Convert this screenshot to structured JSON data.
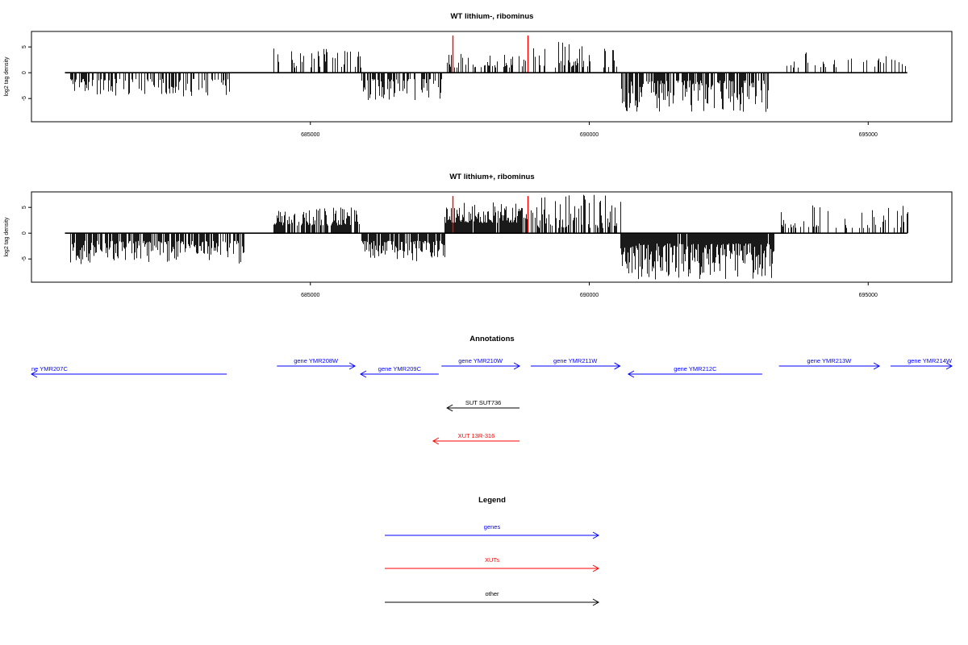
{
  "chart_data": [
    {
      "type": "bar",
      "title": "WT lithium-, ribominus",
      "ylabel": "log2 tag density",
      "xlabel": "",
      "xlim": [
        680000,
        696500
      ],
      "ylim": [
        -9.5,
        8
      ],
      "x_ticks": [
        685000,
        690000,
        695000
      ],
      "x_tick_labels": [
        "685000",
        "690000",
        "695000"
      ],
      "y_ticks": [
        -5,
        0,
        5
      ],
      "y_tick_labels": [
        "-5",
        "0",
        "5"
      ],
      "baseline": {
        "from": 680600,
        "to": 695700,
        "value": 0
      },
      "highlight_color": "#ff0000",
      "highlights": [
        {
          "x": 687550,
          "value": 7.2
        },
        {
          "x": 688900,
          "value": 7.2
        }
      ],
      "segments": [
        {
          "from": 680700,
          "to": 683550,
          "sign": -1,
          "density": 0.45,
          "min": 1.2,
          "max": 4.6
        },
        {
          "from": 684300,
          "to": 685900,
          "sign": 1,
          "density": 0.35,
          "min": 1.0,
          "max": 4.8
        },
        {
          "from": 685900,
          "to": 687350,
          "sign": -1,
          "density": 0.55,
          "min": 1.2,
          "max": 5.5
        },
        {
          "from": 687400,
          "to": 688850,
          "sign": 1,
          "density": 0.35,
          "min": 1.0,
          "max": 3.8
        },
        {
          "from": 688950,
          "to": 690550,
          "sign": 1,
          "density": 0.35,
          "min": 1.0,
          "max": 6.0
        },
        {
          "from": 690550,
          "to": 693200,
          "sign": -1,
          "density": 0.7,
          "min": 1.5,
          "max": 7.6
        },
        {
          "from": 693500,
          "to": 695700,
          "sign": 1,
          "density": 0.25,
          "min": 1.0,
          "max": 4.2
        }
      ]
    },
    {
      "type": "bar",
      "title": "WT lithium+, ribominus",
      "ylabel": "log2 tag density",
      "xlabel": "",
      "xlim": [
        680000,
        696500
      ],
      "ylim": [
        -9.5,
        8
      ],
      "x_ticks": [
        685000,
        690000,
        695000
      ],
      "x_tick_labels": [
        "685000",
        "690000",
        "695000"
      ],
      "y_ticks": [
        -5,
        0,
        5
      ],
      "y_tick_labels": [
        "-5",
        "0",
        "5"
      ],
      "baseline": {
        "from": 680600,
        "to": 695700,
        "value": 0
      },
      "highlight_color": "#ff0000",
      "highlights": [
        {
          "x": 687550,
          "value": 7.2
        },
        {
          "x": 688900,
          "value": 7.2
        }
      ],
      "segments": [
        {
          "from": 680700,
          "to": 683800,
          "sign": -1,
          "density": 0.8,
          "min": 1.5,
          "max": 6.0
        },
        {
          "from": 684300,
          "to": 685900,
          "sign": 1,
          "density": 0.75,
          "min": 1.5,
          "max": 5.3
        },
        {
          "from": 685900,
          "to": 687400,
          "sign": -1,
          "density": 0.85,
          "min": 1.5,
          "max": 5.5
        },
        {
          "from": 687400,
          "to": 688900,
          "sign": 1,
          "density": 0.95,
          "min": 2.0,
          "max": 6.0
        },
        {
          "from": 688950,
          "to": 690550,
          "sign": 1,
          "density": 0.5,
          "min": 1.0,
          "max": 7.5
        },
        {
          "from": 690550,
          "to": 693300,
          "sign": -1,
          "density": 0.95,
          "min": 2.0,
          "max": 9.0
        },
        {
          "from": 693400,
          "to": 695700,
          "sign": 1,
          "density": 0.35,
          "min": 1.0,
          "max": 5.5
        }
      ]
    }
  ],
  "annotations": {
    "title": "Annotations",
    "xlim": [
      680000,
      696500
    ],
    "items": [
      {
        "label": "ne YMR207C",
        "from": 680000,
        "to": 683500,
        "dir": "left",
        "row": 1,
        "color": "#0000ff",
        "label_anchor": "start"
      },
      {
        "label": "gene YMR208W",
        "from": 684400,
        "to": 685800,
        "dir": "right",
        "row": 0,
        "color": "#0000ff"
      },
      {
        "label": "gene YMR209C",
        "from": 685900,
        "to": 687300,
        "dir": "left",
        "row": 1,
        "color": "#0000ff"
      },
      {
        "label": "gene YMR210W",
        "from": 687350,
        "to": 688750,
        "dir": "right",
        "row": 0,
        "color": "#0000ff"
      },
      {
        "label": "gene YMR211W",
        "from": 688950,
        "to": 690550,
        "dir": "right",
        "row": 0,
        "color": "#0000ff"
      },
      {
        "label": "gene YMR212C",
        "from": 690700,
        "to": 693100,
        "dir": "left",
        "row": 1,
        "color": "#0000ff"
      },
      {
        "label": "gene YMR213W",
        "from": 693400,
        "to": 695200,
        "dir": "right",
        "row": 0,
        "color": "#0000ff"
      },
      {
        "label": "gene YMR214W",
        "from": 695400,
        "to": 696500,
        "dir": "right",
        "row": 0,
        "color": "#0000ff",
        "label_anchor": "end"
      },
      {
        "label": "SUT SUT736",
        "from": 687450,
        "to": 688750,
        "dir": "left",
        "row": 2,
        "color": "#000000"
      },
      {
        "label": "XUT 13R-316",
        "from": 687200,
        "to": 688750,
        "dir": "left",
        "row": 3,
        "color": "#ff0000"
      }
    ]
  },
  "legend": {
    "title": "Legend",
    "items": [
      {
        "label": "genes",
        "color": "#0000ff"
      },
      {
        "label": "XUTs",
        "color": "#ff0000"
      },
      {
        "label": "other",
        "color": "#000000"
      }
    ]
  }
}
